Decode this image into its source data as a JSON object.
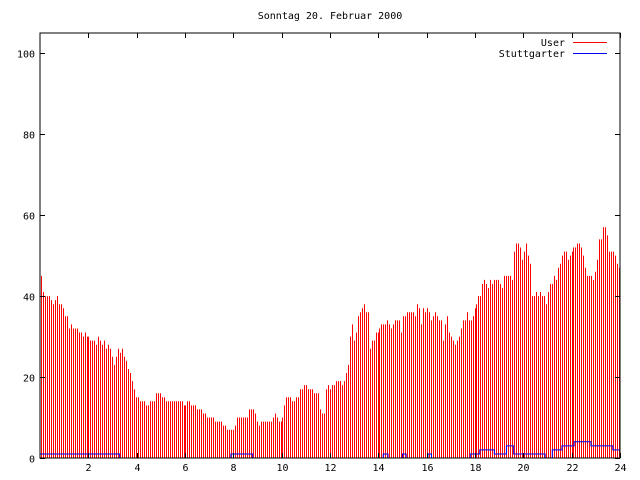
{
  "chart_data": {
    "type": "bar",
    "title": "Sonntag 20. Februar 2000",
    "xlabel": "",
    "ylabel": "",
    "xlim": [
      0,
      24
    ],
    "ylim": [
      0,
      105
    ],
    "x_ticks": [
      "2",
      "4",
      "6",
      "8",
      "10",
      "12",
      "14",
      "16",
      "18",
      "20",
      "22",
      "24"
    ],
    "y_ticks": [
      "0",
      "20",
      "40",
      "60",
      "80",
      "100"
    ],
    "grid": false,
    "legend_position": "top-right",
    "series": [
      {
        "name": "User",
        "color": "#ff0000",
        "style": "impulses",
        "values": [
          45,
          41,
          40,
          40,
          40,
          39,
          38,
          39,
          40,
          38,
          38,
          37,
          35,
          35,
          32,
          33,
          32,
          32,
          32,
          31,
          31,
          30,
          31,
          30,
          30,
          29,
          29,
          29,
          28,
          30,
          29,
          28,
          29,
          27,
          28,
          27,
          25,
          23,
          25,
          27,
          26,
          27,
          25,
          24,
          22,
          21,
          19,
          17,
          15,
          15,
          14,
          14,
          14,
          13,
          13,
          14,
          14,
          14,
          16,
          16,
          16,
          15,
          15,
          14,
          14,
          14,
          14,
          14,
          14,
          14,
          14,
          14,
          13,
          13,
          14,
          14,
          13,
          13,
          13,
          12,
          12,
          12,
          11,
          11,
          10,
          10,
          10,
          10,
          9,
          9,
          9,
          9,
          8,
          8,
          7,
          7,
          7,
          7,
          8,
          10,
          10,
          10,
          10,
          10,
          10,
          12,
          12,
          12,
          11,
          9,
          8,
          9,
          9,
          9,
          9,
          9,
          9,
          10,
          11,
          10,
          9,
          9,
          10,
          13,
          15,
          15,
          15,
          14,
          14,
          15,
          15,
          17,
          17,
          18,
          18,
          17,
          17,
          17,
          16,
          16,
          16,
          12,
          11,
          11,
          17,
          18,
          17,
          18,
          18,
          19,
          19,
          19,
          18,
          19,
          21,
          23,
          30,
          33,
          29,
          31,
          35,
          36,
          37,
          38,
          36,
          36,
          27,
          29,
          29,
          31,
          31,
          32,
          33,
          33,
          33,
          34,
          33,
          32,
          33,
          34,
          34,
          34,
          31,
          35,
          35,
          36,
          36,
          36,
          36,
          35,
          38,
          37,
          33,
          37,
          36,
          37,
          36,
          34,
          35,
          36,
          35,
          34,
          34,
          29,
          33,
          35,
          31,
          30,
          29,
          28,
          29,
          30,
          32,
          34,
          34,
          36,
          34,
          34,
          35,
          37,
          38,
          40,
          40,
          43,
          44,
          43,
          42,
          44,
          43,
          44,
          44,
          44,
          43,
          42,
          45,
          45,
          45,
          45,
          44,
          51,
          53,
          53,
          52,
          49,
          51,
          53,
          50,
          48,
          40,
          40,
          41,
          40,
          41,
          40,
          40,
          38,
          41,
          43,
          43,
          45,
          44,
          47,
          48,
          50,
          51,
          51,
          49,
          50,
          51,
          52,
          52,
          53,
          53,
          52,
          50,
          47,
          45,
          45,
          45,
          44,
          46,
          49,
          54,
          54,
          57,
          57,
          55,
          51,
          51,
          51,
          50,
          48,
          47
        ]
      },
      {
        "name": "Stuttgarter",
        "color": "#0000ff",
        "style": "steps",
        "points": [
          [
            0,
            1
          ],
          [
            3.3,
            1
          ],
          [
            3.3,
            0
          ],
          [
            7.9,
            0
          ],
          [
            7.9,
            1
          ],
          [
            8.8,
            1
          ],
          [
            8.8,
            0
          ],
          [
            14.2,
            0
          ],
          [
            14.2,
            1
          ],
          [
            14.4,
            1
          ],
          [
            14.4,
            0
          ],
          [
            15,
            0
          ],
          [
            15,
            1
          ],
          [
            15.15,
            1
          ],
          [
            15.15,
            0
          ],
          [
            16.05,
            0
          ],
          [
            16.05,
            1
          ],
          [
            16.2,
            1
          ],
          [
            16.2,
            0
          ],
          [
            17.8,
            0
          ],
          [
            17.8,
            1
          ],
          [
            18.2,
            1
          ],
          [
            18.2,
            2
          ],
          [
            18.8,
            2
          ],
          [
            18.8,
            1
          ],
          [
            19.3,
            1
          ],
          [
            19.3,
            3
          ],
          [
            19.6,
            3
          ],
          [
            19.6,
            1
          ],
          [
            20.9,
            1
          ],
          [
            20.9,
            0
          ],
          [
            21.2,
            0
          ],
          [
            21.2,
            2
          ],
          [
            21.6,
            2
          ],
          [
            21.6,
            3
          ],
          [
            22.1,
            3
          ],
          [
            22.1,
            4
          ],
          [
            22.8,
            4
          ],
          [
            22.8,
            3
          ],
          [
            23.7,
            3
          ],
          [
            23.7,
            2
          ],
          [
            24,
            2
          ]
        ]
      }
    ]
  }
}
